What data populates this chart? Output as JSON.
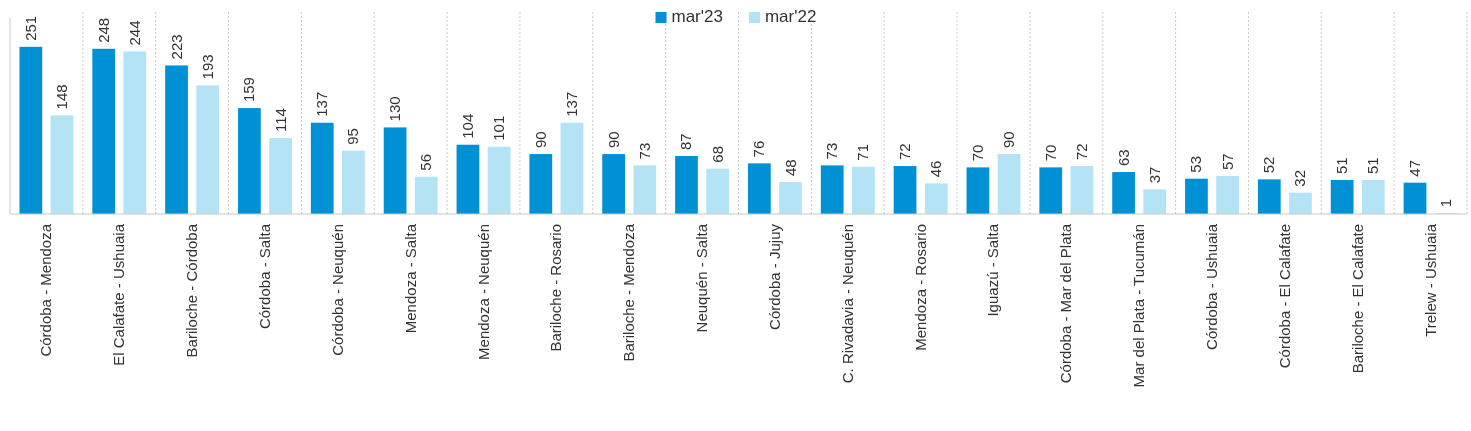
{
  "chart_data": {
    "type": "bar",
    "categories": [
      "Córdoba - Mendoza",
      "El Calafate - Ushuaia",
      "Bariloche - Córdoba",
      "Córdoba - Salta",
      "Córdoba - Neuquén",
      "Mendoza - Salta",
      "Mendoza - Neuquén",
      "Bariloche - Rosario",
      "Bariloche - Mendoza",
      "Neuquén - Salta",
      "Córdoba - Jujuy",
      "C. Rivadavia - Neuquén",
      "Mendoza - Rosario",
      "Iguazú - Salta",
      "Córdoba - Mar del Plata",
      "Mar del Plata - Tucumán",
      "Córdoba - Ushuaia",
      "Córdoba - El Calafate",
      "Bariloche - El Calafate",
      "Trelew - Ushuaia"
    ],
    "series": [
      {
        "name": "mar'23",
        "color": "#0091d5",
        "values": [
          251,
          248,
          223,
          159,
          137,
          130,
          104,
          90,
          90,
          87,
          76,
          73,
          72,
          70,
          70,
          63,
          53,
          52,
          51,
          47
        ]
      },
      {
        "name": "mar'22",
        "color": "#b3e3f5",
        "values": [
          148,
          244,
          193,
          114,
          95,
          56,
          101,
          137,
          73,
          68,
          48,
          71,
          46,
          90,
          72,
          37,
          57,
          32,
          51,
          1
        ]
      }
    ],
    "tick_labels": "x",
    "data_labels": true,
    "legend": "top"
  }
}
